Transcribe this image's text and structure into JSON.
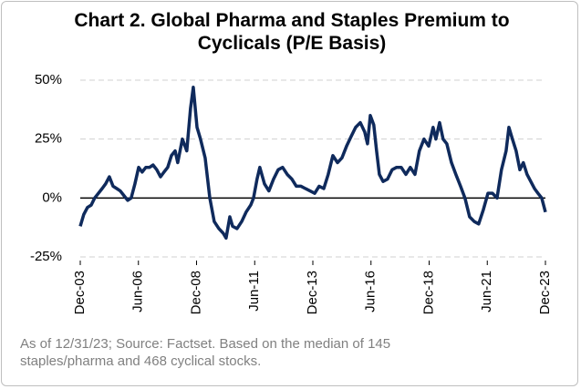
{
  "chart_data": {
    "type": "line",
    "title": "Chart 2. Global Pharma and Staples Premium to Cyclicals (P/E Basis)",
    "note": "As of 12/31/23; Source: Factset. Based on the median of 145 staples/pharma and 468 cyclical stocks.",
    "x": [
      2003.92,
      2004.07,
      2004.23,
      2004.39,
      2004.54,
      2004.7,
      2004.86,
      2005.01,
      2005.17,
      2005.33,
      2005.49,
      2005.64,
      2005.8,
      2005.96,
      2006.11,
      2006.27,
      2006.43,
      2006.58,
      2006.74,
      2006.9,
      2007.05,
      2007.21,
      2007.37,
      2007.52,
      2007.68,
      2007.84,
      2008.0,
      2008.11,
      2008.31,
      2008.5,
      2008.66,
      2008.78,
      2008.94,
      2009.09,
      2009.29,
      2009.49,
      2009.68,
      2009.88,
      2010.07,
      2010.19,
      2010.35,
      2010.47,
      2010.66,
      2010.86,
      2011.05,
      2011.25,
      2011.37,
      2011.52,
      2011.64,
      2011.84,
      2012.03,
      2012.23,
      2012.43,
      2012.62,
      2012.82,
      2013.02,
      2013.21,
      2013.41,
      2013.6,
      2013.8,
      2014.0,
      2014.19,
      2014.39,
      2014.58,
      2014.78,
      2014.98,
      2015.17,
      2015.37,
      2015.56,
      2015.76,
      2015.96,
      2016.15,
      2016.27,
      2016.39,
      2016.54,
      2016.66,
      2016.78,
      2016.94,
      2017.13,
      2017.33,
      2017.52,
      2017.72,
      2017.92,
      2018.11,
      2018.31,
      2018.5,
      2018.7,
      2018.9,
      2019.09,
      2019.21,
      2019.37,
      2019.52,
      2019.68,
      2019.88,
      2020.07,
      2020.27,
      2020.46,
      2020.66,
      2020.86,
      2021.05,
      2021.25,
      2021.45,
      2021.64,
      2021.84,
      2022.03,
      2022.23,
      2022.35,
      2022.5,
      2022.66,
      2022.82,
      2022.97,
      2023.13,
      2023.29,
      2023.45,
      2023.6,
      2023.76,
      2023.92
    ],
    "series": [
      {
        "name": "Premium",
        "color": "#0f2a5c",
        "values": [
          -12,
          -7,
          -4,
          -3,
          0,
          2,
          4,
          6,
          9,
          5,
          4,
          3,
          1,
          -1,
          0,
          6,
          13,
          11,
          13,
          13,
          14,
          12,
          9,
          11,
          13,
          18,
          20,
          15,
          25,
          20,
          38,
          47,
          30,
          25,
          17,
          0,
          -10,
          -13,
          -15,
          -17,
          -8,
          -12,
          -13,
          -10,
          -6,
          -3,
          0,
          8,
          13,
          6,
          3,
          8,
          12,
          13,
          10,
          8,
          5,
          5,
          4,
          3,
          2,
          5,
          4,
          10,
          18,
          15,
          17,
          22,
          26,
          30,
          32,
          28,
          23,
          35,
          31,
          20,
          10,
          7,
          8,
          12,
          13,
          13,
          10,
          13,
          10,
          20,
          25,
          22,
          30,
          25,
          32,
          25,
          23,
          15,
          10,
          5,
          0,
          -8,
          -10,
          -11,
          -5,
          2,
          2,
          0,
          12,
          20,
          30,
          25,
          20,
          12,
          15,
          10,
          7,
          4,
          2,
          0,
          -6
        ]
      }
    ],
    "xlim": [
      2003.92,
      2023.92
    ],
    "xticks": [
      {
        "value": 2003.92,
        "label": "Dec-03"
      },
      {
        "value": 2006.42,
        "label": "Jun-06"
      },
      {
        "value": 2008.92,
        "label": "Dec-08"
      },
      {
        "value": 2011.42,
        "label": "Jun-11"
      },
      {
        "value": 2013.92,
        "label": "Dec-13"
      },
      {
        "value": 2016.42,
        "label": "Jun-16"
      },
      {
        "value": 2018.92,
        "label": "Dec-18"
      },
      {
        "value": 2021.42,
        "label": "Jun-21"
      },
      {
        "value": 2023.92,
        "label": "Dec-23"
      }
    ],
    "ylim": [
      -25,
      50
    ],
    "yticks": [
      {
        "value": -25,
        "label": "-25%"
      },
      {
        "value": 0,
        "label": "0%"
      },
      {
        "value": 25,
        "label": "25%"
      },
      {
        "value": 50,
        "label": "50%"
      }
    ],
    "grid": true
  }
}
